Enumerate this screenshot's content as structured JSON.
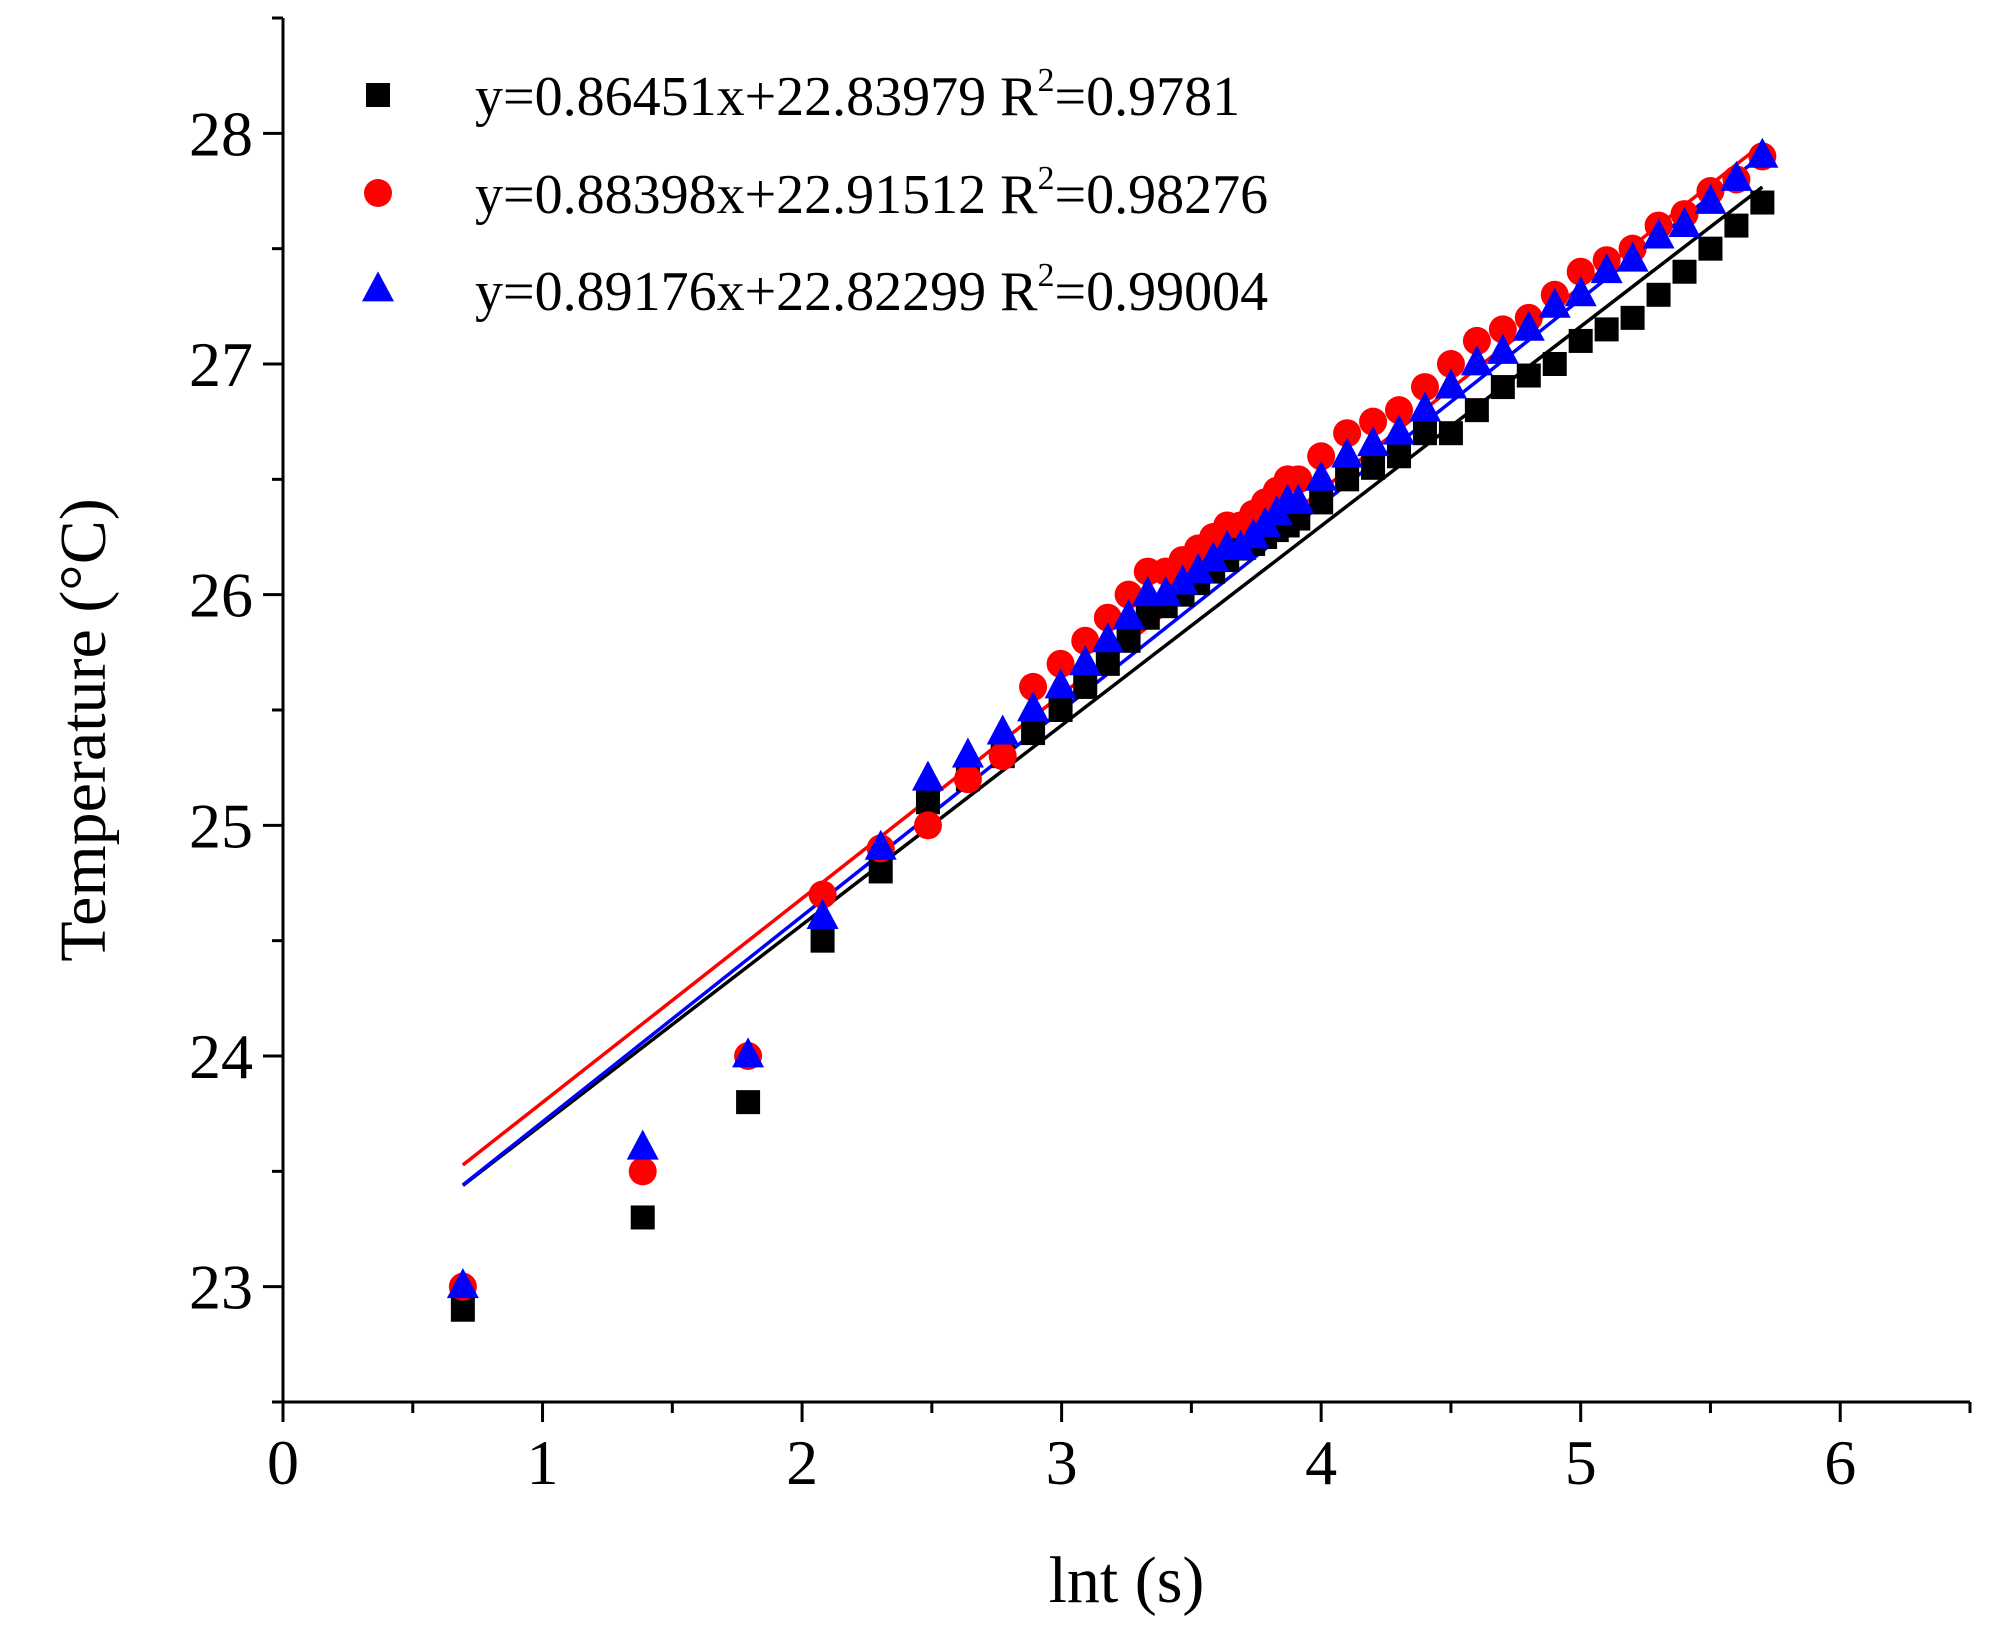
{
  "chart_data": {
    "type": "scatter",
    "title": "",
    "xlabel": "lnt (s)",
    "ylabel": "Temperature (°C)",
    "xlim": [
      0,
      6.5
    ],
    "ylim": [
      22.5,
      28.5
    ],
    "xticks": [
      0,
      1,
      2,
      3,
      4,
      5,
      6
    ],
    "yticks": [
      23,
      24,
      25,
      26,
      27,
      28
    ],
    "grid": false,
    "legend_position": "top-left",
    "series": [
      {
        "name": "y=0.86451x+22.83979 R²=0.9781",
        "legend": {
          "eq": "y=0.86451x+22.83979 R",
          "sup": "2",
          "tail": "=0.9781"
        },
        "marker": "square",
        "color": "#000000",
        "fit": {
          "slope": 0.86451,
          "intercept": 22.83979
        },
        "x": [
          0.693,
          1.386,
          1.792,
          2.079,
          2.303,
          2.485,
          2.639,
          2.773,
          2.89,
          2.996,
          3.091,
          3.178,
          3.258,
          3.332,
          3.401,
          3.466,
          3.526,
          3.584,
          3.638,
          3.689,
          3.738,
          3.784,
          3.829,
          3.871,
          3.912,
          4.0,
          4.1,
          4.2,
          4.3,
          4.4,
          4.5,
          4.6,
          4.7,
          4.8,
          4.9,
          5.0,
          5.1,
          5.2,
          5.3,
          5.4,
          5.5,
          5.6,
          5.7
        ],
        "y": [
          22.9,
          23.3,
          23.8,
          24.5,
          24.8,
          25.1,
          25.2,
          25.3,
          25.4,
          25.5,
          25.6,
          25.7,
          25.8,
          25.9,
          25.95,
          26.0,
          26.05,
          26.1,
          26.15,
          26.2,
          26.22,
          26.25,
          26.28,
          26.3,
          26.33,
          26.4,
          26.5,
          26.55,
          26.6,
          26.7,
          26.7,
          26.8,
          26.9,
          26.95,
          27.0,
          27.1,
          27.15,
          27.2,
          27.3,
          27.4,
          27.5,
          27.6,
          27.7
        ]
      },
      {
        "name": "y=0.88398x+22.91512 R²=0.98276",
        "legend": {
          "eq": "y=0.88398x+22.91512 R",
          "sup": "2",
          "tail": "=0.98276"
        },
        "marker": "circle",
        "color": "#ff0000",
        "fit": {
          "slope": 0.88398,
          "intercept": 22.91512
        },
        "x": [
          0.693,
          1.386,
          1.792,
          2.079,
          2.303,
          2.485,
          2.639,
          2.773,
          2.89,
          2.996,
          3.091,
          3.178,
          3.258,
          3.332,
          3.401,
          3.466,
          3.526,
          3.584,
          3.638,
          3.689,
          3.738,
          3.784,
          3.829,
          3.871,
          3.912,
          4.0,
          4.1,
          4.2,
          4.3,
          4.4,
          4.5,
          4.6,
          4.7,
          4.8,
          4.9,
          5.0,
          5.1,
          5.2,
          5.3,
          5.4,
          5.5,
          5.6,
          5.7
        ],
        "y": [
          23.0,
          23.5,
          24.0,
          24.7,
          24.9,
          25.0,
          25.2,
          25.3,
          25.6,
          25.7,
          25.8,
          25.9,
          26.0,
          26.1,
          26.1,
          26.15,
          26.2,
          26.25,
          26.3,
          26.3,
          26.35,
          26.4,
          26.45,
          26.5,
          26.5,
          26.6,
          26.7,
          26.75,
          26.8,
          26.9,
          27.0,
          27.1,
          27.15,
          27.2,
          27.3,
          27.4,
          27.45,
          27.5,
          27.6,
          27.65,
          27.75,
          27.8,
          27.9
        ]
      },
      {
        "name": "y=0.89176x+22.82299 R²=0.99004",
        "legend": {
          "eq": "y=0.89176x+22.82299 R",
          "sup": "2",
          "tail": "=0.99004"
        },
        "marker": "triangle",
        "color": "#0000ff",
        "fit": {
          "slope": 0.89176,
          "intercept": 22.82299
        },
        "x": [
          0.693,
          1.386,
          1.792,
          2.079,
          2.303,
          2.485,
          2.639,
          2.773,
          2.89,
          2.996,
          3.091,
          3.178,
          3.258,
          3.332,
          3.401,
          3.466,
          3.526,
          3.584,
          3.638,
          3.689,
          3.738,
          3.784,
          3.829,
          3.871,
          3.912,
          4.0,
          4.1,
          4.2,
          4.3,
          4.4,
          4.5,
          4.6,
          4.7,
          4.8,
          4.9,
          5.0,
          5.1,
          5.2,
          5.3,
          5.4,
          5.5,
          5.6,
          5.7
        ],
        "y": [
          23.0,
          23.6,
          24.0,
          24.6,
          24.9,
          25.2,
          25.3,
          25.4,
          25.5,
          25.6,
          25.7,
          25.8,
          25.9,
          26.0,
          26.0,
          26.05,
          26.1,
          26.15,
          26.2,
          26.2,
          26.25,
          26.3,
          26.35,
          26.4,
          26.4,
          26.5,
          26.6,
          26.65,
          26.7,
          26.8,
          26.9,
          27.0,
          27.05,
          27.15,
          27.25,
          27.3,
          27.4,
          27.45,
          27.55,
          27.6,
          27.7,
          27.8,
          27.9
        ]
      }
    ]
  }
}
